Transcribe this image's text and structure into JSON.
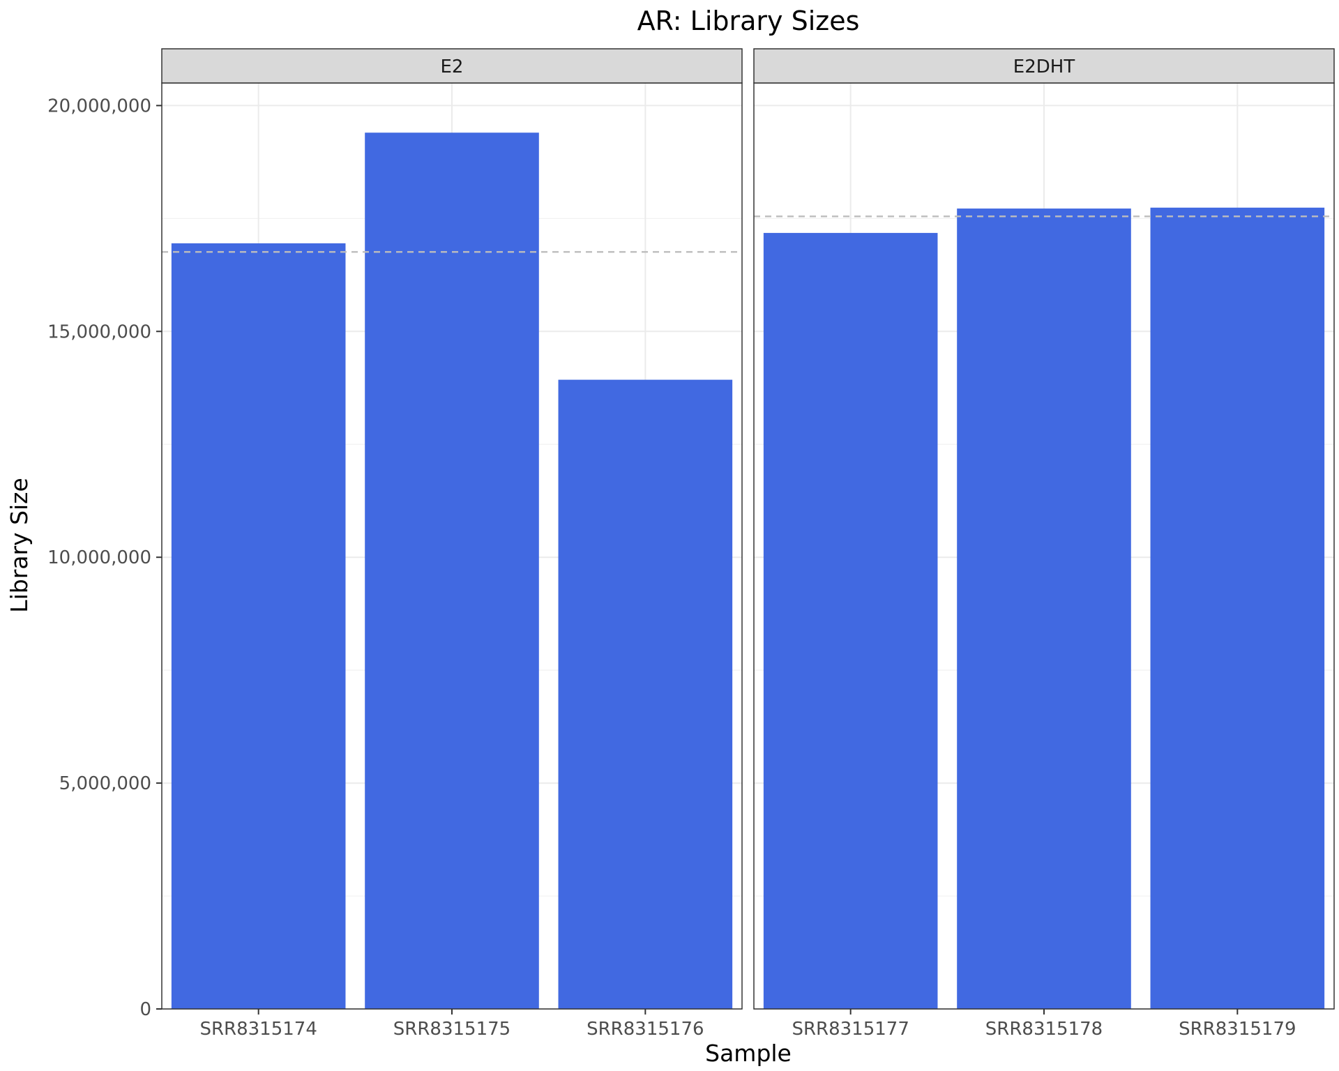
{
  "chart_data": {
    "type": "bar",
    "title": "AR: Library Sizes",
    "xlabel": "Sample",
    "ylabel": "Library Size",
    "ylim": [
      0,
      20500000
    ],
    "yticks": [
      0,
      5000000,
      10000000,
      15000000,
      20000000
    ],
    "ytick_labels": [
      "0",
      "5,000,000",
      "10,000,000",
      "15,000,000",
      "20,000,000"
    ],
    "grid": true,
    "bar_color": "#4169E1",
    "mean_line_color": "#bdbdbd",
    "facets": [
      {
        "name": "E2",
        "categories": [
          "SRR8315174",
          "SRR8315175",
          "SRR8315176"
        ],
        "values": [
          16950000,
          19400000,
          13930000
        ],
        "mean": 16760000
      },
      {
        "name": "E2DHT",
        "categories": [
          "SRR8315177",
          "SRR8315178",
          "SRR8315179"
        ],
        "values": [
          17180000,
          17720000,
          17740000
        ],
        "mean": 17547000
      }
    ]
  }
}
